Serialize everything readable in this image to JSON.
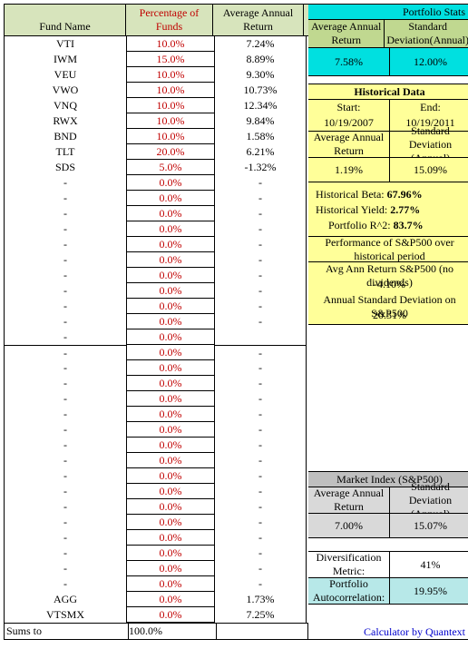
{
  "headers": {
    "fund_name": "Fund Name",
    "pct_funds": "Percentage of Funds",
    "avg_return": "Average Annual Return"
  },
  "rows_a": [
    {
      "name": "VTI",
      "pct": "10.0%",
      "ret": "7.24%"
    },
    {
      "name": "IWM",
      "pct": "15.0%",
      "ret": "8.89%"
    },
    {
      "name": "VEU",
      "pct": "10.0%",
      "ret": "9.30%"
    },
    {
      "name": "VWO",
      "pct": "10.0%",
      "ret": "10.73%"
    },
    {
      "name": "VNQ",
      "pct": "10.0%",
      "ret": "12.34%"
    },
    {
      "name": "RWX",
      "pct": "10.0%",
      "ret": "9.84%"
    },
    {
      "name": "BND",
      "pct": "10.0%",
      "ret": "1.58%"
    },
    {
      "name": "TLT",
      "pct": "20.0%",
      "ret": "6.21%"
    },
    {
      "name": "SDS",
      "pct": "5.0%",
      "ret": "-1.32%"
    },
    {
      "name": "-",
      "pct": "0.0%",
      "ret": "-"
    },
    {
      "name": "-",
      "pct": "0.0%",
      "ret": "-"
    },
    {
      "name": "-",
      "pct": "0.0%",
      "ret": "-"
    },
    {
      "name": "-",
      "pct": "0.0%",
      "ret": "-"
    },
    {
      "name": "-",
      "pct": "0.0%",
      "ret": "-"
    },
    {
      "name": "-",
      "pct": "0.0%",
      "ret": "-"
    },
    {
      "name": "-",
      "pct": "0.0%",
      "ret": "-"
    },
    {
      "name": "-",
      "pct": "0.0%",
      "ret": "-"
    },
    {
      "name": "-",
      "pct": "0.0%",
      "ret": "-"
    },
    {
      "name": "-",
      "pct": "0.0%",
      "ret": "-"
    },
    {
      "name": "-",
      "pct": "0.0%",
      "ret": ""
    }
  ],
  "rows_b": [
    {
      "name": "-",
      "pct": "0.0%",
      "ret": "-"
    },
    {
      "name": "-",
      "pct": "0.0%",
      "ret": "-"
    },
    {
      "name": "-",
      "pct": "0.0%",
      "ret": "-"
    },
    {
      "name": "-",
      "pct": "0.0%",
      "ret": "-"
    },
    {
      "name": "-",
      "pct": "0.0%",
      "ret": "-"
    },
    {
      "name": "-",
      "pct": "0.0%",
      "ret": "-"
    },
    {
      "name": "-",
      "pct": "0.0%",
      "ret": "-"
    },
    {
      "name": "-",
      "pct": "0.0%",
      "ret": "-"
    },
    {
      "name": "-",
      "pct": "0.0%",
      "ret": "-"
    },
    {
      "name": "-",
      "pct": "0.0%",
      "ret": "-"
    },
    {
      "name": "-",
      "pct": "0.0%",
      "ret": "-"
    },
    {
      "name": "-",
      "pct": "0.0%",
      "ret": "-"
    },
    {
      "name": "-",
      "pct": "0.0%",
      "ret": "-"
    },
    {
      "name": "-",
      "pct": "0.0%",
      "ret": "-"
    },
    {
      "name": "-",
      "pct": "0.0%",
      "ret": "-"
    },
    {
      "name": "-",
      "pct": "0.0%",
      "ret": "-"
    },
    {
      "name": "AGG",
      "pct": "0.0%",
      "ret": "1.73%"
    },
    {
      "name": "VTSMX",
      "pct": "0.0%",
      "ret": "7.25%"
    }
  ],
  "sum": {
    "label": "Sums to",
    "pct": "100.0%",
    "ret": ""
  },
  "stats": {
    "title": "Portfolio Stats",
    "avg_label": "Average Annual Return",
    "std_label": "Standard Deviation(Annual)",
    "avg": "7.58%",
    "std": "12.00%"
  },
  "hist": {
    "title": "Historical Data",
    "start_l": "Start:",
    "end_l": "End:",
    "start": "10/19/2007",
    "end": "10/19/2011",
    "avg_l": "Average Annual Return",
    "std_l": "Standard Deviation (Annual)",
    "avg": "1.19%",
    "std": "15.09%",
    "beta_l": "Historical Beta:",
    "beta": "67.96%",
    "yield_l": "Historical Yield:",
    "yield": "2.77%",
    "r2_l": "Portfolio R^2:",
    "r2": "83.7%",
    "sp_perf": "Performance of S&P500 over historical period",
    "sp_ret_l": "Avg Ann Return S&P500 (no dividends)",
    "sp_ret": "-4.10%",
    "sp_std_l": "Annual Standard Deviation on S&P500",
    "sp_std": "20.31%"
  },
  "mkt": {
    "title": "Market Index (S&P500)",
    "avg_l": "Average Annual Return",
    "std_l": "Standard Deviation (Annual)",
    "avg": "7.00%",
    "std": "15.07%"
  },
  "div": {
    "label": "Diversification Metric:",
    "val": "41%"
  },
  "auto": {
    "label": "Portfolio Autocorrelation:",
    "val": "19.95%"
  },
  "credit": "Calculator by Quantext"
}
